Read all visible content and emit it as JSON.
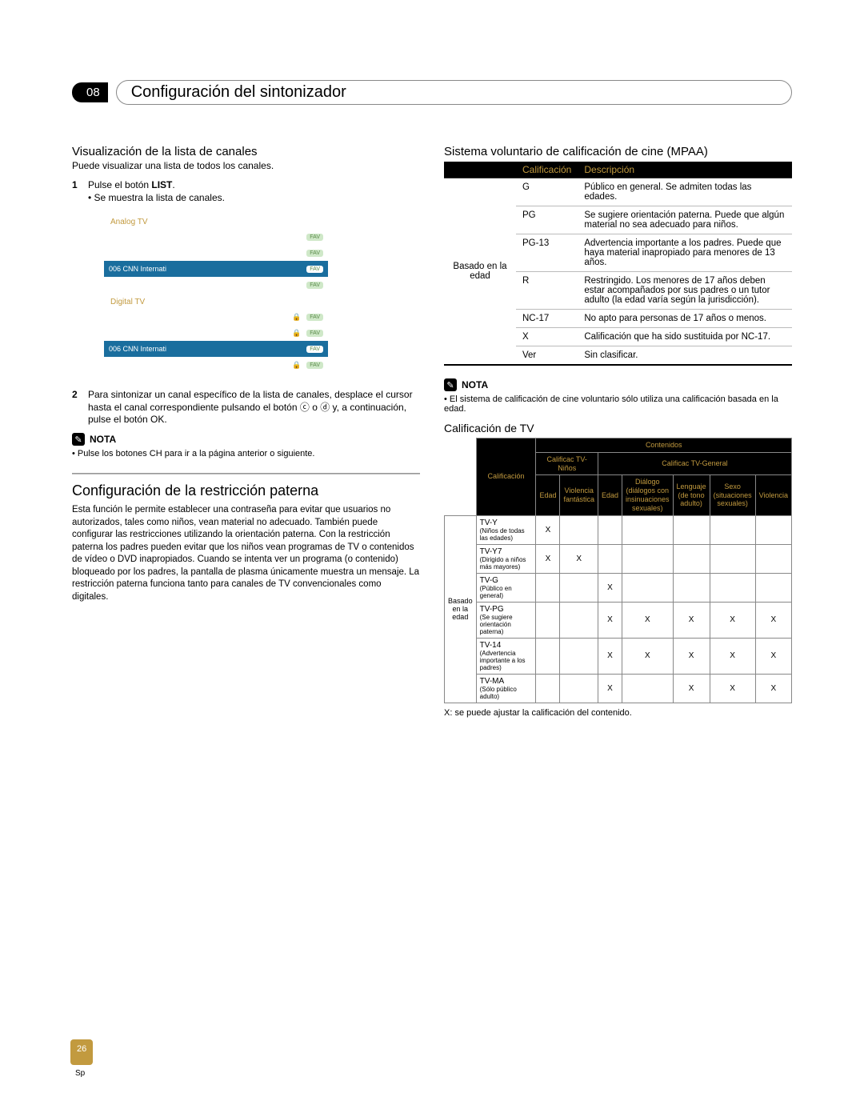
{
  "chapter": {
    "num": "08",
    "title": "Configuración del sintonizador"
  },
  "left": {
    "viewH": "Visualización de la lista de canales",
    "viewSub": "Puede visualizar una lista de todos los canales.",
    "step1a": "Pulse el botón ",
    "step1b": "LIST",
    "step1c": ".",
    "step1bullet": "• Se muestra la lista de canales.",
    "channelList": {
      "analogLabel": "Analog TV",
      "digitalLabel": "Digital TV",
      "selectedRow": "006 CNN Internati",
      "fav": "FAV"
    },
    "step2": "Para sintonizar un canal específico de la lista de canales, desplace el cursor hasta el canal correspondiente pulsando el botón ⓒ o ⓓ y, a continuación, pulse el botón OK.",
    "note1Label": "NOTA",
    "note1Text": "• Pulse los botones CH para ir a la página anterior o siguiente.",
    "restrH": "Configuración de la restricción paterna",
    "restrBody": "Esta función le permite establecer una contraseña para evitar que usuarios no autorizados, tales como niños, vean material no adecuado. También puede configurar las restricciones utilizando la orientación paterna.\nCon la restricción paterna los padres pueden evitar que los niños vean programas de TV o contenidos de vídeo o DVD inapropiados. Cuando se intenta ver un programa (o contenido) bloqueado por los padres, la pantalla de plasma únicamente muestra un mensaje. La restricción paterna funciona tanto para canales de TV convencionales como digitales."
  },
  "right": {
    "mpaaH": "Sistema voluntario de calificación de cine (MPAA)",
    "mpaaHead1": "Calificación",
    "mpaaHead2": "Descripción",
    "mpaaBasis": "Basado en la edad",
    "mpaaRows": [
      {
        "r": "G",
        "d": "Público en general. Se admiten todas las edades."
      },
      {
        "r": "PG",
        "d": "Se sugiere orientación paterna. Puede que algún material no sea adecuado para niños."
      },
      {
        "r": "PG-13",
        "d": "Advertencia importante a los padres. Puede que haya material inapropiado para menores de 13 años."
      },
      {
        "r": "R",
        "d": "Restringido. Los menores de 17 años deben estar acompañados por sus padres o un tutor adulto (la edad varía según la jurisdicción)."
      },
      {
        "r": "NC-17",
        "d": "No apto para personas de 17 años o menos."
      },
      {
        "r": "X",
        "d": "Calificación que ha sido sustituida por NC-17."
      },
      {
        "r": "Ver",
        "d": "Sin clasificar."
      }
    ],
    "note2Label": "NOTA",
    "note2Text": "• El sistema de calificación de cine voluntario sólo utiliza una calificación basada en la edad.",
    "tvH": "Calificación de TV",
    "tvHead": {
      "contenidos": "Contenidos",
      "calif": "Calificación",
      "grpA": "Calificac TV-Niños",
      "grpB": "Calificac TV-General",
      "c1": "Edad",
      "c2": "Violencia fantástica",
      "c3": "Edad",
      "c4": "Diálogo (diálogos con insinuaciones sexuales)",
      "c5": "Lenguaje (de tono adulto)",
      "c6": "Sexo (situaciones sexuales)",
      "c7": "Violencia"
    },
    "tvBasis": "Basado en la edad",
    "tvRows": [
      {
        "n": "TV-Y",
        "d": "(Niños de todas las edades)",
        "cells": [
          "X",
          "",
          "",
          "",
          "",
          "",
          ""
        ]
      },
      {
        "n": "TV-Y7",
        "d": "(Dirigido a niños más mayores)",
        "cells": [
          "X",
          "X",
          "",
          "",
          "",
          "",
          ""
        ]
      },
      {
        "n": "TV-G",
        "d": "(Público en general)",
        "cells": [
          "",
          "",
          "X",
          "",
          "",
          "",
          ""
        ]
      },
      {
        "n": "TV-PG",
        "d": "(Se sugiere orientación paterna)",
        "cells": [
          "",
          "",
          "X",
          "X",
          "X",
          "X",
          "X"
        ]
      },
      {
        "n": "TV-14",
        "d": "(Advertencia importante a los padres)",
        "cells": [
          "",
          "",
          "X",
          "X",
          "X",
          "X",
          "X"
        ]
      },
      {
        "n": "TV-MA",
        "d": "(Sólo público adulto)",
        "cells": [
          "",
          "",
          "X",
          "",
          "X",
          "X",
          "X"
        ]
      }
    ],
    "tvFoot": "X: se puede ajustar la calificación del contenido."
  },
  "pageNum": "26",
  "pageSp": "Sp"
}
